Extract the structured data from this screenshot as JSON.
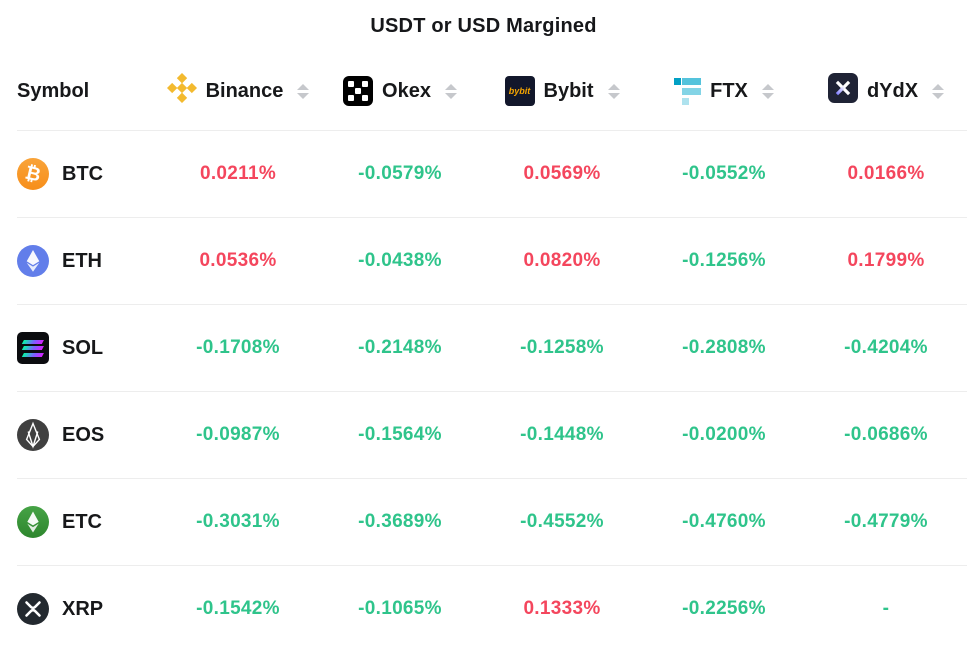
{
  "title": "USDT or USD Margined",
  "colors": {
    "positive_value": "#f4465d",
    "negative_value": "#2fc48b",
    "divider": "#ededed",
    "sort_arrow": "#c6c8cc"
  },
  "table": {
    "symbol_header": "Symbol",
    "exchanges": [
      {
        "name": "Binance",
        "icon": "binance-icon"
      },
      {
        "name": "Okex",
        "icon": "okex-icon"
      },
      {
        "name": "Bybit",
        "icon": "bybit-icon"
      },
      {
        "name": "FTX",
        "icon": "ftx-icon"
      },
      {
        "name": "dYdX",
        "icon": "dydx-icon"
      }
    ],
    "bybit_logo_text": "bybit",
    "rows": [
      {
        "symbol": "BTC",
        "icon": "btc-icon",
        "values": [
          "0.0211%",
          "-0.0579%",
          "0.0569%",
          "-0.0552%",
          "0.0166%"
        ]
      },
      {
        "symbol": "ETH",
        "icon": "eth-icon",
        "values": [
          "0.0536%",
          "-0.0438%",
          "0.0820%",
          "-0.1256%",
          "0.1799%"
        ]
      },
      {
        "symbol": "SOL",
        "icon": "sol-icon",
        "values": [
          "-0.1708%",
          "-0.2148%",
          "-0.1258%",
          "-0.2808%",
          "-0.4204%"
        ]
      },
      {
        "symbol": "EOS",
        "icon": "eos-icon",
        "values": [
          "-0.0987%",
          "-0.1564%",
          "-0.1448%",
          "-0.0200%",
          "-0.0686%"
        ]
      },
      {
        "symbol": "ETC",
        "icon": "etc-icon",
        "values": [
          "-0.3031%",
          "-0.3689%",
          "-0.4552%",
          "-0.4760%",
          "-0.4779%"
        ]
      },
      {
        "symbol": "XRP",
        "icon": "xrp-icon",
        "values": [
          "-0.1542%",
          "-0.1065%",
          "0.1333%",
          "-0.2256%",
          "-"
        ]
      }
    ]
  }
}
